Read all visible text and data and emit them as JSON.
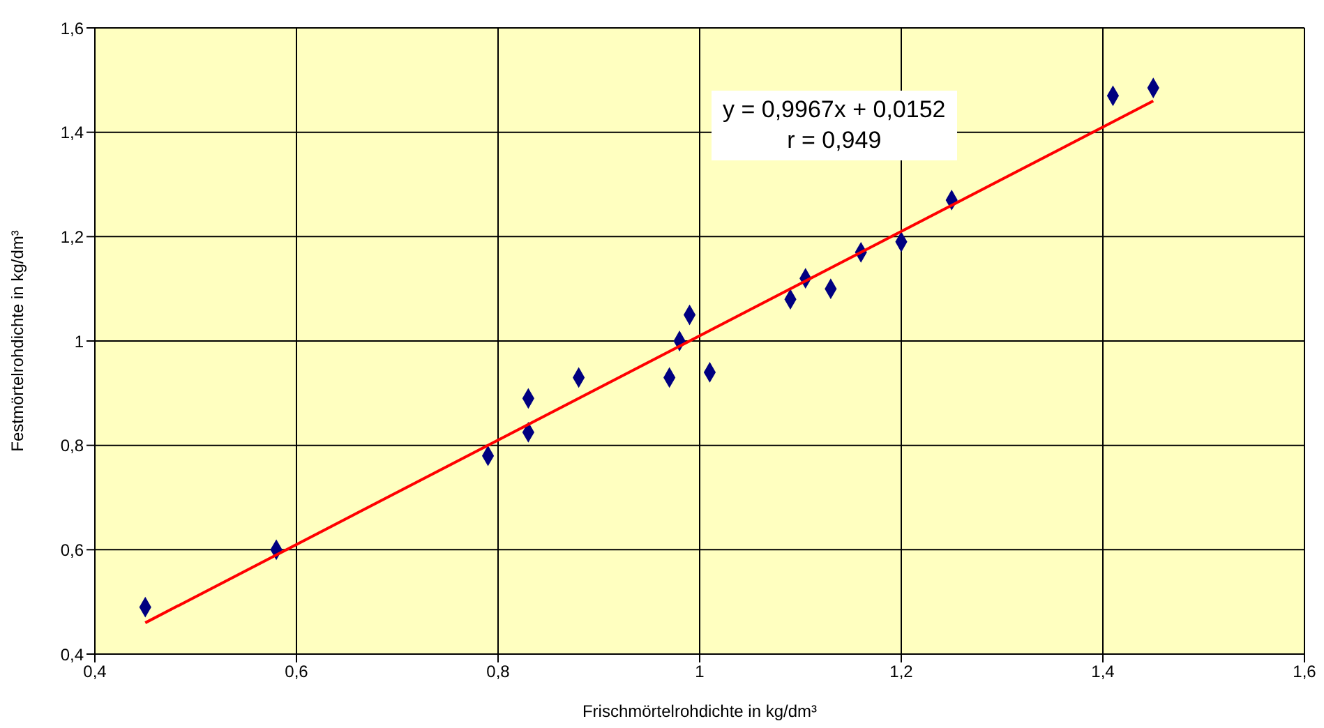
{
  "chart_data": {
    "type": "scatter",
    "xlabel": "Frischmörtelrohdichte in kg/dm³",
    "ylabel": "Festmörtelrohdichte in kg/dm³",
    "annotations": [
      "y = 0,9967x + 0,0152",
      "r = 0,949"
    ],
    "xlim": [
      0.4,
      1.6
    ],
    "xticks": [
      {
        "value": 0.4,
        "label": "0,4"
      },
      {
        "value": 0.6,
        "label": "0,6"
      },
      {
        "value": 0.8,
        "label": "0,8"
      },
      {
        "value": 1,
        "label": "1"
      },
      {
        "value": 1.2,
        "label": "1,2"
      },
      {
        "value": 1.4,
        "label": "1,4"
      },
      {
        "value": 1.6,
        "label": "1,6"
      }
    ],
    "ylim": [
      0.4,
      1.6
    ],
    "yticks": [
      {
        "value": 0.4,
        "label": "0,4"
      },
      {
        "value": 0.6,
        "label": "0,6"
      },
      {
        "value": 0.8,
        "label": "0,8"
      },
      {
        "value": 1,
        "label": "1"
      },
      {
        "value": 1.2,
        "label": "1,2"
      },
      {
        "value": 1.4,
        "label": "1,4"
      },
      {
        "value": 1.6,
        "label": "1,6"
      }
    ],
    "grid": true,
    "legend": false,
    "series": [
      {
        "color": "#000080",
        "marker": "diamond",
        "x": [
          0.45,
          0.58,
          0.79,
          0.83,
          0.83,
          0.88,
          0.97,
          0.98,
          0.99,
          1.01,
          1.09,
          1.105,
          1.13,
          1.16,
          1.2,
          1.25,
          1.41,
          1.45
        ],
        "values": [
          0.49,
          0.6,
          0.78,
          0.89,
          0.825,
          0.93,
          0.93,
          1.0,
          1.05,
          0.94,
          1.08,
          1.12,
          1.1,
          1.17,
          1.19,
          1.27,
          1.47,
          1.485
        ]
      },
      {
        "type": "line",
        "color": "#ff0000",
        "marker": "none",
        "line_style": "solid",
        "x": [
          0.45,
          1.45
        ],
        "values": [
          0.46,
          1.46
        ]
      }
    ]
  }
}
